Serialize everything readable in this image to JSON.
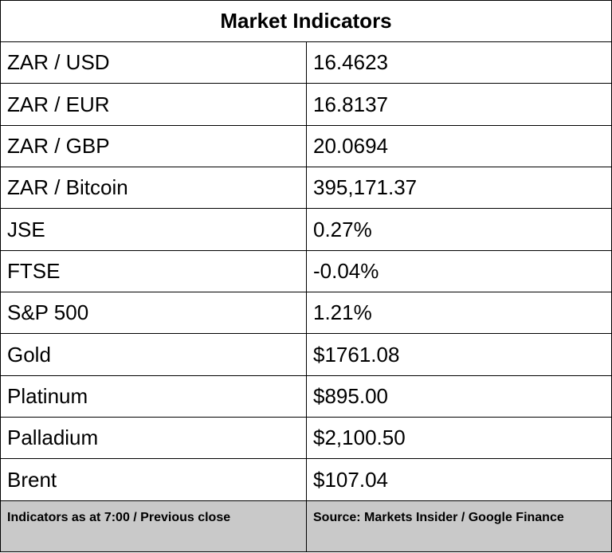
{
  "title": "Market Indicators",
  "rows": [
    {
      "label": "ZAR / USD",
      "value": "16.4623"
    },
    {
      "label": "ZAR / EUR",
      "value": "16.8137"
    },
    {
      "label": "ZAR / GBP",
      "value": "20.0694"
    },
    {
      "label": "ZAR / Bitcoin",
      "value": "395,171.37"
    },
    {
      "label": "JSE",
      "value": "0.27%"
    },
    {
      "label": "FTSE",
      "value": "-0.04%"
    },
    {
      "label": "S&P 500",
      "value": "1.21%"
    },
    {
      "label": "Gold",
      "value": "$1761.08"
    },
    {
      "label": "Platinum",
      "value": "$895.00"
    },
    {
      "label": "Palladium",
      "value": "$2,100.50"
    },
    {
      "label": "Brent",
      "value": "$107.04"
    }
  ],
  "footer": {
    "note": "Indicators as at 7:00 / Previous close",
    "source": "Source: Markets Insider / Google Finance"
  },
  "colors": {
    "border": "#000000",
    "footer_background": "#c9c9c9"
  }
}
